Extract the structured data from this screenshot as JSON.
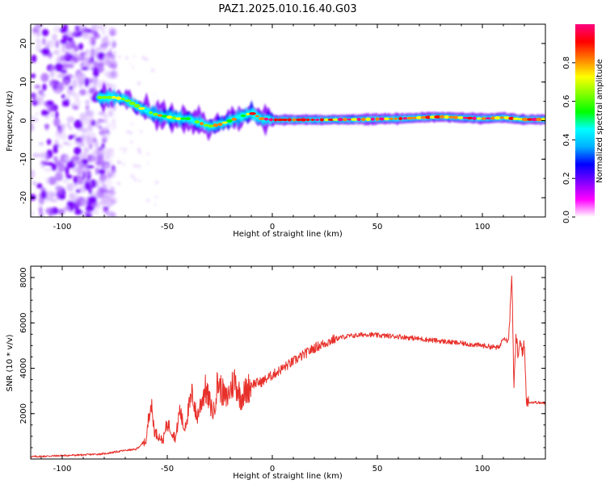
{
  "title": "PAZ1.2025.010.16.40.G03",
  "chart_data": [
    {
      "type": "heatmap",
      "xlabel": "Height of straight line (km)",
      "ylabel": "Frequency (Hz)",
      "xlim": [
        -115,
        130
      ],
      "ylim": [
        -25,
        25
      ],
      "x_ticks": [
        -100,
        -50,
        0,
        50,
        100
      ],
      "y_ticks": [
        -20,
        -10,
        0,
        10,
        20
      ],
      "colorbar": {
        "label": "Normalized spectral amplitude",
        "range": [
          0,
          1
        ],
        "ticks": [
          "0.0",
          "0.2",
          "0.4",
          "0.6",
          "0.8"
        ],
        "colormap": [
          "#ffffff",
          "#ff00ff",
          "#8000ff",
          "#0000ff",
          "#00b0ff",
          "#00ffff",
          "#00ff00",
          "#80ff00",
          "#ffff00",
          "#ff8000",
          "#ff0000",
          "#ff0080"
        ]
      },
      "ridge": {
        "x": [
          -83,
          -75,
          -70,
          -65,
          -60,
          -55,
          -50,
          -45,
          -40,
          -35,
          -30,
          -25,
          -20,
          -15,
          -10,
          -5,
          0,
          20,
          40,
          60,
          80,
          100,
          110,
          115,
          120,
          130
        ],
        "y": [
          6,
          6,
          5.5,
          4,
          2.5,
          1.5,
          1,
          0.5,
          0.5,
          -0.5,
          -1.5,
          -1,
          0,
          1,
          2,
          0.5,
          0.2,
          0.2,
          0.3,
          0.5,
          1,
          0.5,
          0.8,
          0.5,
          0.3,
          0.3
        ]
      },
      "noise_region": {
        "x": [
          -115,
          -75
        ],
        "y": [
          -25,
          25
        ]
      }
    },
    {
      "type": "line",
      "xlabel": "Height of straight line (km)",
      "ylabel": "SNR (10 * v/v)",
      "xlim": [
        -115,
        130
      ],
      "ylim": [
        0,
        8500
      ],
      "x_ticks": [
        -100,
        -50,
        0,
        50,
        100
      ],
      "y_ticks": [
        2000,
        4000,
        6000,
        8000
      ],
      "series": [
        {
          "color": "#e8302a",
          "x": [
            -115,
            -100,
            -90,
            -80,
            -70,
            -65,
            -60,
            -58,
            -56,
            -52,
            -50,
            -46,
            -44,
            -42,
            -38,
            -36,
            -32,
            -28,
            -26,
            -22,
            -18,
            -15,
            -10,
            -5,
            0,
            5,
            10,
            15,
            20,
            25,
            30,
            35,
            40,
            45,
            50,
            60,
            70,
            80,
            90,
            100,
            108,
            110,
            112,
            113,
            114,
            115,
            116,
            117,
            118,
            119,
            120,
            121,
            122,
            125,
            130
          ],
          "y": [
            100,
            150,
            180,
            230,
            380,
            420,
            800,
            2600,
            1200,
            800,
            1600,
            900,
            2200,
            1300,
            2900,
            1800,
            3100,
            2000,
            3400,
            2600,
            3500,
            2700,
            3300,
            3400,
            3700,
            4000,
            4300,
            4600,
            4900,
            5100,
            5300,
            5400,
            5450,
            5500,
            5450,
            5400,
            5300,
            5200,
            5100,
            5000,
            4900,
            5400,
            5200,
            6000,
            8400,
            3000,
            5500,
            4500,
            5100,
            4800,
            5000,
            2600,
            2500,
            2500,
            2450
          ]
        }
      ]
    }
  ]
}
